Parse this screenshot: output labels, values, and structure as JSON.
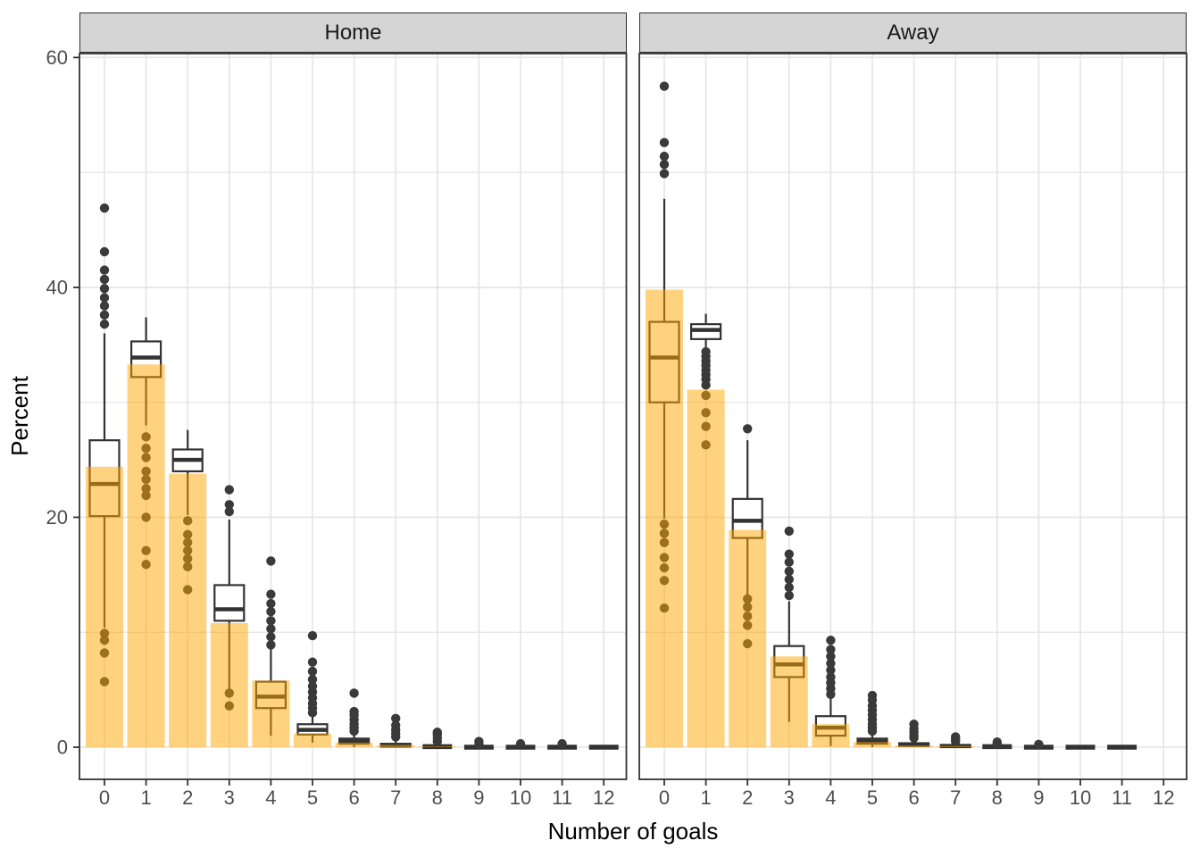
{
  "figure": {
    "x_axis_title": "Number of goals",
    "y_axis_title": "Percent",
    "y_ticks": [
      0,
      20,
      40,
      60
    ],
    "x_ticks": [
      0,
      1,
      2,
      3,
      4,
      5,
      6,
      7,
      8,
      9,
      10,
      11,
      12
    ],
    "facets": {
      "left": "Home",
      "right": "Away"
    }
  },
  "colors": {
    "bar_fill": "#FFA500",
    "bar_opacity": 0.5,
    "box_stroke": "#333333",
    "box_fill": "#FFFFFF",
    "outlier_dot": "#3A3A3A",
    "gridline": "#E4E4E4",
    "panel_border": "#333333",
    "strip_fill": "#D5D5D5",
    "axis_text": "#4D4D4D"
  },
  "chart_data": [
    {
      "type": "bar",
      "facet": "Home",
      "xlabel": "Number of goals",
      "ylabel": "Percent",
      "ylim": [
        0,
        60
      ],
      "grid": true,
      "x": [
        0,
        1,
        2,
        3,
        4,
        5,
        6,
        7,
        8,
        9,
        10,
        11,
        12
      ],
      "bar_percent": [
        24.4,
        33.3,
        23.8,
        10.8,
        5.8,
        1.2,
        0.4,
        0.2,
        0.07,
        0,
        0,
        0,
        0
      ],
      "boxplots": [
        {
          "x": 0,
          "lo": 10.4,
          "q1": 20.1,
          "med": 22.9,
          "q3": 26.7,
          "hi": 36.0,
          "out": [
            36.8,
            37.6,
            38.4,
            39.1,
            39.9,
            40.7,
            41.5,
            43.1,
            46.9,
            9.9,
            9.3,
            8.2,
            5.7
          ]
        },
        {
          "x": 1,
          "lo": 28.0,
          "q1": 32.2,
          "med": 33.9,
          "q3": 35.3,
          "hi": 37.4,
          "out": [
            27.0,
            26.0,
            25.2,
            24.0,
            23.3,
            22.5,
            21.9,
            20.0,
            17.1,
            15.9
          ]
        },
        {
          "x": 2,
          "lo": 20.2,
          "q1": 24.0,
          "med": 25.0,
          "q3": 25.9,
          "hi": 27.6,
          "out": [
            19.7,
            18.5,
            17.8,
            17.1,
            16.4,
            15.7,
            13.7
          ]
        },
        {
          "x": 3,
          "lo": 5.0,
          "q1": 11.0,
          "med": 12.0,
          "q3": 14.1,
          "hi": 19.8,
          "out": [
            20.5,
            21.1,
            22.4,
            4.7,
            3.6
          ]
        },
        {
          "x": 4,
          "lo": 1.0,
          "q1": 3.4,
          "med": 4.4,
          "q3": 5.7,
          "hi": 8.5,
          "out": [
            8.9,
            9.6,
            10.3,
            11.0,
            11.8,
            12.5,
            13.3,
            16.2
          ]
        },
        {
          "x": 5,
          "lo": 0.4,
          "q1": 1.1,
          "med": 1.5,
          "q3": 2.0,
          "hi": 2.7,
          "out": [
            3.0,
            3.4,
            3.8,
            4.3,
            4.8,
            5.3,
            5.9,
            6.6,
            7.4,
            9.7
          ]
        },
        {
          "x": 6,
          "lo": 0,
          "q1": 0.3,
          "med": 0.5,
          "q3": 0.75,
          "hi": 1.1,
          "out": [
            1.4,
            1.7,
            2.0,
            2.4,
            2.8,
            3.1,
            4.7
          ]
        },
        {
          "x": 7,
          "lo": 0,
          "q1": 0.05,
          "med": 0.15,
          "q3": 0.3,
          "hi": 0.5,
          "out": [
            0.9,
            1.2,
            1.5,
            1.9,
            2.5
          ]
        },
        {
          "x": 8,
          "lo": 0,
          "q1": 0,
          "med": 0.05,
          "q3": 0.15,
          "hi": 0.3,
          "out": [
            0.5,
            0.8,
            1.1,
            1.3
          ]
        },
        {
          "x": 9,
          "lo": 0,
          "q1": 0,
          "med": 0,
          "q3": 0.05,
          "hi": 0.1,
          "out": [
            0.3,
            0.5
          ]
        },
        {
          "x": 10,
          "lo": 0,
          "q1": 0,
          "med": 0,
          "q3": 0,
          "hi": 0,
          "out": [
            0.3
          ]
        },
        {
          "x": 11,
          "lo": 0,
          "q1": 0,
          "med": 0,
          "q3": 0,
          "hi": 0,
          "out": [
            0.3
          ]
        },
        {
          "x": 12,
          "lo": 0,
          "q1": 0,
          "med": 0,
          "q3": 0,
          "hi": 0,
          "out": []
        }
      ]
    },
    {
      "type": "bar",
      "facet": "Away",
      "xlabel": "Number of goals",
      "ylabel": "Percent",
      "ylim": [
        0,
        60
      ],
      "grid": true,
      "x": [
        0,
        1,
        2,
        3,
        4,
        5,
        6,
        7,
        8,
        9,
        10,
        11,
        12
      ],
      "bar_percent": [
        39.8,
        31.1,
        18.9,
        7.9,
        2.0,
        0.45,
        0.15,
        0.1,
        0,
        0,
        0,
        0,
        0
      ],
      "boxplots": [
        {
          "x": 0,
          "lo": 19.9,
          "q1": 30.0,
          "med": 33.9,
          "q3": 37.0,
          "hi": 47.7,
          "out": [
            49.9,
            50.7,
            51.4,
            52.6,
            57.5,
            19.4,
            18.6,
            17.8,
            16.5,
            15.6,
            14.5,
            12.1
          ]
        },
        {
          "x": 1,
          "lo": 34.8,
          "q1": 35.5,
          "med": 36.3,
          "q3": 36.8,
          "hi": 37.7,
          "out": [
            34.4,
            34.0,
            33.6,
            33.2,
            32.8,
            32.4,
            32.0,
            31.5,
            30.6,
            29.1,
            27.9,
            26.3
          ]
        },
        {
          "x": 2,
          "lo": 13.2,
          "q1": 18.2,
          "med": 19.7,
          "q3": 21.6,
          "hi": 26.7,
          "out": [
            27.7,
            12.9,
            12.2,
            11.4,
            10.6,
            9.0
          ]
        },
        {
          "x": 3,
          "lo": 2.2,
          "q1": 6.1,
          "med": 7.2,
          "q3": 8.8,
          "hi": 12.7,
          "out": [
            13.2,
            13.9,
            14.6,
            15.3,
            16.1,
            16.8,
            18.8
          ]
        },
        {
          "x": 4,
          "lo": 0.1,
          "q1": 1.0,
          "med": 1.7,
          "q3": 2.7,
          "hi": 4.4,
          "out": [
            4.6,
            5.1,
            5.6,
            6.1,
            6.7,
            7.3,
            7.9,
            8.5,
            9.3
          ]
        },
        {
          "x": 5,
          "lo": 0,
          "q1": 0.3,
          "med": 0.5,
          "q3": 0.75,
          "hi": 1.2,
          "out": [
            1.4,
            1.7,
            2.0,
            2.4,
            2.8,
            3.2,
            3.6,
            4.1,
            4.5
          ]
        },
        {
          "x": 6,
          "lo": 0,
          "q1": 0.1,
          "med": 0.2,
          "q3": 0.35,
          "hi": 0.55,
          "out": [
            0.8,
            1.0,
            1.3,
            1.6,
            2.0
          ]
        },
        {
          "x": 7,
          "lo": 0,
          "q1": 0,
          "med": 0.1,
          "q3": 0.2,
          "hi": 0.3,
          "out": [
            0.5,
            0.7,
            0.9
          ]
        },
        {
          "x": 8,
          "lo": 0,
          "q1": 0,
          "med": 0.05,
          "q3": 0.1,
          "hi": 0.15,
          "out": [
            0.3,
            0.45
          ]
        },
        {
          "x": 9,
          "lo": 0,
          "q1": 0,
          "med": 0,
          "q3": 0,
          "hi": 0,
          "out": [
            0.25
          ]
        },
        {
          "x": 10,
          "lo": 0,
          "q1": 0,
          "med": 0,
          "q3": 0,
          "hi": 0,
          "out": []
        },
        {
          "x": 11,
          "lo": 0,
          "q1": 0,
          "med": 0,
          "q3": 0,
          "hi": 0,
          "out": []
        },
        null
      ]
    }
  ]
}
